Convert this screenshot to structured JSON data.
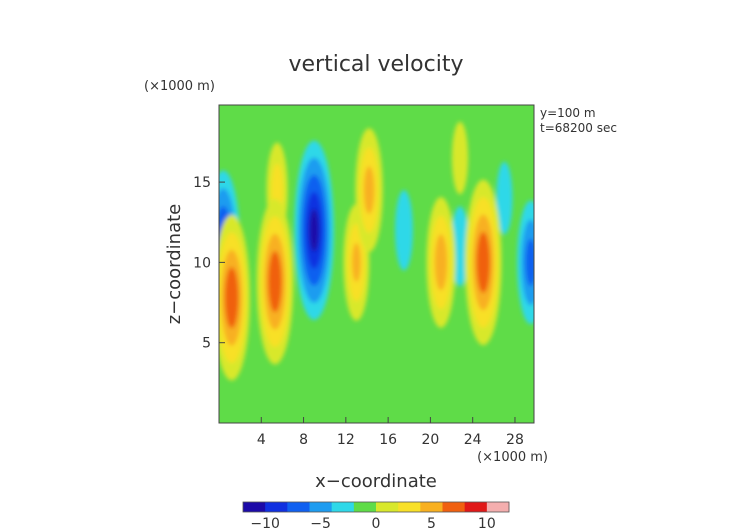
{
  "chart_data": {
    "type": "heatmap",
    "title": "vertical velocity",
    "xlabel": "x−coordinate",
    "ylabel": "z−coordinate",
    "x_unit": "(×1000 m)",
    "z_unit": "(×1000 m)",
    "annotations": [
      "y=100 m",
      "t=68200 sec"
    ],
    "xlim": [
      0,
      29.8
    ],
    "zlim": [
      0,
      19.8
    ],
    "x_ticks": [
      4,
      8,
      12,
      16,
      20,
      24,
      28
    ],
    "x_tick_labels": [
      "4",
      "8",
      "12",
      "16",
      "20",
      "24",
      "28"
    ],
    "z_ticks": [
      5,
      10,
      15
    ],
    "z_tick_labels": [
      "5",
      "10",
      "15"
    ],
    "grid": false,
    "colorbar": {
      "range": [
        -12,
        12
      ],
      "ticks": [
        -10,
        -5,
        0,
        5,
        10
      ],
      "tick_labels": [
        "−10",
        "−5",
        "0",
        "5",
        "10"
      ],
      "placement": "bottom"
    },
    "features": [
      {
        "kind": "updraft",
        "x": 1.2,
        "z": 7.8,
        "peak": 9.5
      },
      {
        "kind": "updraft",
        "x": 5.5,
        "z": 14.5,
        "peak": 4.5
      },
      {
        "kind": "updraft",
        "x": 5.3,
        "z": 8.8,
        "peak": 9.5
      },
      {
        "kind": "updraft",
        "x": 14.2,
        "z": 14.5,
        "peak": 6.5
      },
      {
        "kind": "updraft",
        "x": 13.0,
        "z": 10.0,
        "peak": 6.0
      },
      {
        "kind": "updraft",
        "x": 21.0,
        "z": 10.0,
        "peak": 7.0
      },
      {
        "kind": "updraft",
        "x": 25.0,
        "z": 10.0,
        "peak": 9.5
      },
      {
        "kind": "updraft",
        "x": 22.8,
        "z": 16.5,
        "peak": 3.0
      },
      {
        "kind": "downdraft",
        "x": 0.4,
        "z": 11.0,
        "peak": -8.5
      },
      {
        "kind": "downdraft",
        "x": 9.0,
        "z": 12.0,
        "peak": -10.5
      },
      {
        "kind": "downdraft",
        "x": 17.5,
        "z": 12.0,
        "peak": -3.5
      },
      {
        "kind": "downdraft",
        "x": 22.8,
        "z": 11.0,
        "peak": -3.5
      },
      {
        "kind": "downdraft",
        "x": 29.5,
        "z": 10.0,
        "peak": -6.5
      },
      {
        "kind": "downdraft",
        "x": 27.0,
        "z": 14.0,
        "peak": -3.0
      }
    ]
  }
}
